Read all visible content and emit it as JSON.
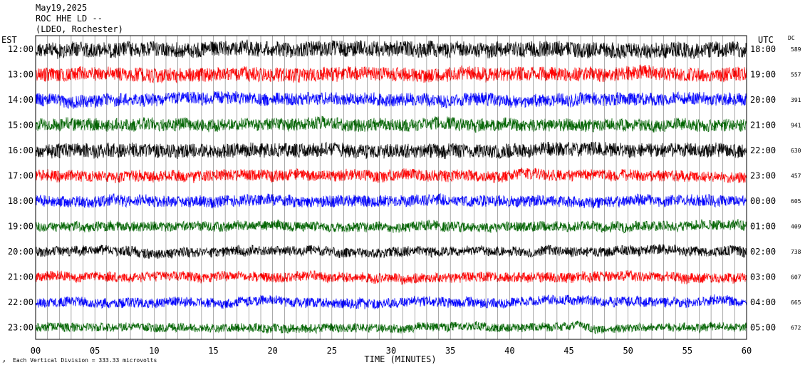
{
  "header": {
    "date": "May19,2025",
    "station": "ROC HHE LD --",
    "location": "(LDEO, Rochester)"
  },
  "chart_data": {
    "type": "line",
    "left_axis_label": "EST",
    "right_axis_label": "UTC",
    "dc_label": "DC",
    "xlabel": "TIME (MINUTES)",
    "footer": "Each Vertical Division = 333.33 microvolts",
    "x_tick_labels": [
      "00",
      "05",
      "10",
      "15",
      "20",
      "25",
      "30",
      "35",
      "40",
      "45",
      "50",
      "55",
      "60"
    ],
    "xlim": [
      0,
      60
    ],
    "trace_colors": [
      "#000000",
      "#ff0000",
      "#0000ff",
      "#006400"
    ],
    "rows": [
      {
        "est": "12:00",
        "utc": "18:00",
        "dc": "589"
      },
      {
        "est": "13:00",
        "utc": "19:00",
        "dc": "557"
      },
      {
        "est": "14:00",
        "utc": "20:00",
        "dc": "391"
      },
      {
        "est": "15:00",
        "utc": "21:00",
        "dc": "941"
      },
      {
        "est": "16:00",
        "utc": "22:00",
        "dc": "630"
      },
      {
        "est": "17:00",
        "utc": "23:00",
        "dc": "457"
      },
      {
        "est": "18:00",
        "utc": "00:00",
        "dc": "605"
      },
      {
        "est": "19:00",
        "utc": "01:00",
        "dc": "409"
      },
      {
        "est": "20:00",
        "utc": "02:00",
        "dc": "738"
      },
      {
        "est": "21:00",
        "utc": "03:00",
        "dc": "607"
      },
      {
        "est": "22:00",
        "utc": "04:00",
        "dc": "665"
      },
      {
        "est": "23:00",
        "utc": "05:00",
        "dc": "672"
      }
    ]
  }
}
